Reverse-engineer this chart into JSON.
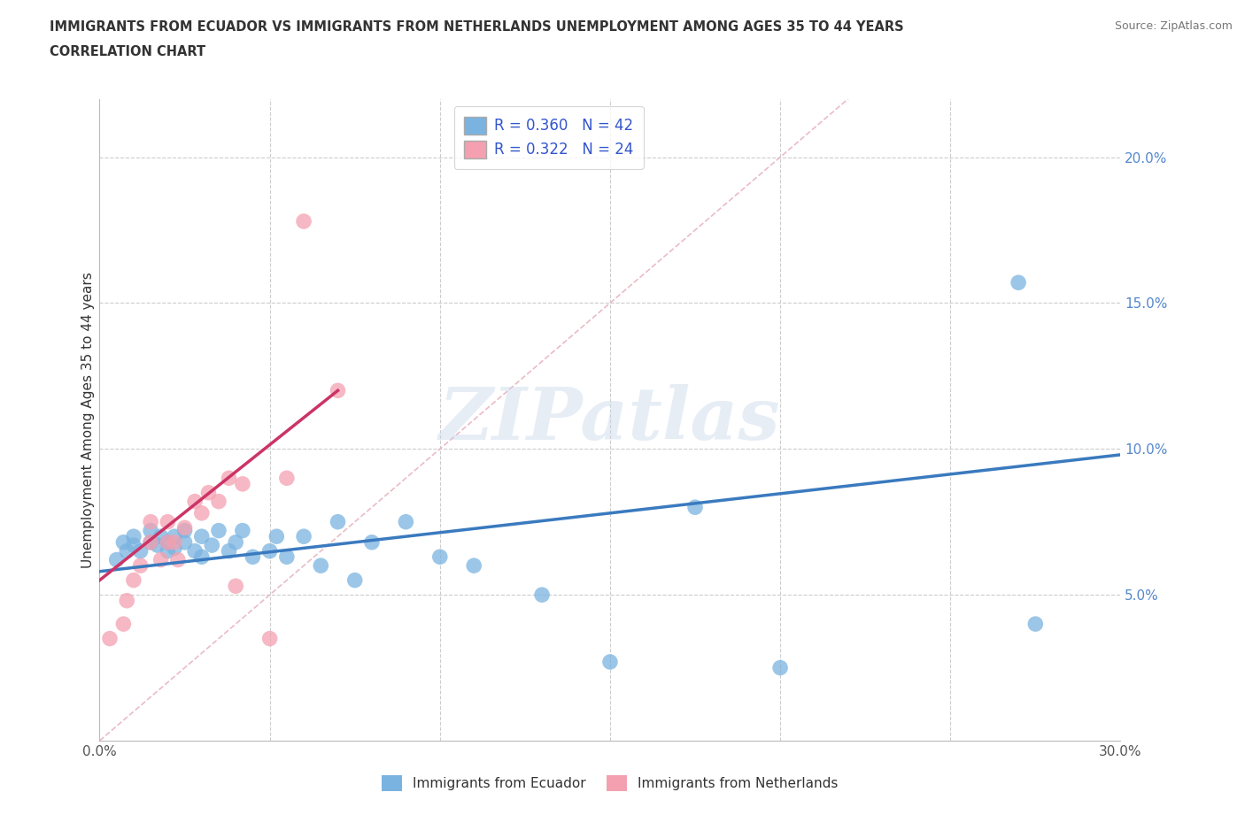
{
  "title_line1": "IMMIGRANTS FROM ECUADOR VS IMMIGRANTS FROM NETHERLANDS UNEMPLOYMENT AMONG AGES 35 TO 44 YEARS",
  "title_line2": "CORRELATION CHART",
  "source_text": "Source: ZipAtlas.com",
  "ylabel": "Unemployment Among Ages 35 to 44 years",
  "xlim": [
    0.0,
    0.3
  ],
  "ylim": [
    0.0,
    0.22
  ],
  "xticks": [
    0.0,
    0.05,
    0.1,
    0.15,
    0.2,
    0.25,
    0.3
  ],
  "yticks": [
    0.0,
    0.05,
    0.1,
    0.15,
    0.2
  ],
  "ecuador_color": "#7ab3e0",
  "netherlands_color": "#f4a0b0",
  "ecuador_R": 0.36,
  "ecuador_N": 42,
  "netherlands_R": 0.322,
  "netherlands_N": 24,
  "ecuador_scatter_x": [
    0.005,
    0.007,
    0.008,
    0.01,
    0.01,
    0.012,
    0.015,
    0.015,
    0.017,
    0.018,
    0.02,
    0.02,
    0.022,
    0.022,
    0.025,
    0.025,
    0.028,
    0.03,
    0.03,
    0.033,
    0.035,
    0.038,
    0.04,
    0.042,
    0.045,
    0.05,
    0.052,
    0.055,
    0.06,
    0.065,
    0.07,
    0.075,
    0.08,
    0.09,
    0.1,
    0.11,
    0.13,
    0.15,
    0.175,
    0.2,
    0.27,
    0.275
  ],
  "ecuador_scatter_y": [
    0.062,
    0.068,
    0.065,
    0.067,
    0.07,
    0.065,
    0.068,
    0.072,
    0.067,
    0.07,
    0.065,
    0.068,
    0.066,
    0.07,
    0.068,
    0.072,
    0.065,
    0.063,
    0.07,
    0.067,
    0.072,
    0.065,
    0.068,
    0.072,
    0.063,
    0.065,
    0.07,
    0.063,
    0.07,
    0.06,
    0.075,
    0.055,
    0.068,
    0.075,
    0.063,
    0.06,
    0.05,
    0.027,
    0.08,
    0.025,
    0.157,
    0.04
  ],
  "netherlands_scatter_x": [
    0.003,
    0.007,
    0.008,
    0.01,
    0.012,
    0.015,
    0.015,
    0.018,
    0.02,
    0.02,
    0.022,
    0.023,
    0.025,
    0.028,
    0.03,
    0.032,
    0.035,
    0.038,
    0.04,
    0.042,
    0.05,
    0.055,
    0.06,
    0.07
  ],
  "netherlands_scatter_y": [
    0.035,
    0.04,
    0.048,
    0.055,
    0.06,
    0.068,
    0.075,
    0.062,
    0.068,
    0.075,
    0.068,
    0.062,
    0.073,
    0.082,
    0.078,
    0.085,
    0.082,
    0.09,
    0.053,
    0.088,
    0.035,
    0.09,
    0.178,
    0.12
  ],
  "ecuador_trend_x": [
    0.0,
    0.3
  ],
  "ecuador_trend_y": [
    0.058,
    0.098
  ],
  "netherlands_trend_x": [
    0.0,
    0.07
  ],
  "netherlands_trend_y": [
    0.055,
    0.12
  ],
  "diag_line_x": [
    0.0,
    0.22
  ],
  "diag_line_y": [
    0.0,
    0.22
  ],
  "watermark_text": "ZIPatlas",
  "legend_ecuador_label": "Immigrants from Ecuador",
  "legend_netherlands_label": "Immigrants from Netherlands",
  "background_color": "#ffffff",
  "grid_color": "#cccccc",
  "ecuador_trend_color": "#3a7abf",
  "netherlands_trend_color": "#cc3366",
  "diag_color": "#e8b4c0",
  "ytick_color": "#5588cc",
  "xtick_color": "#555555",
  "title_color": "#333333",
  "legend_label_color": "#3355cc"
}
